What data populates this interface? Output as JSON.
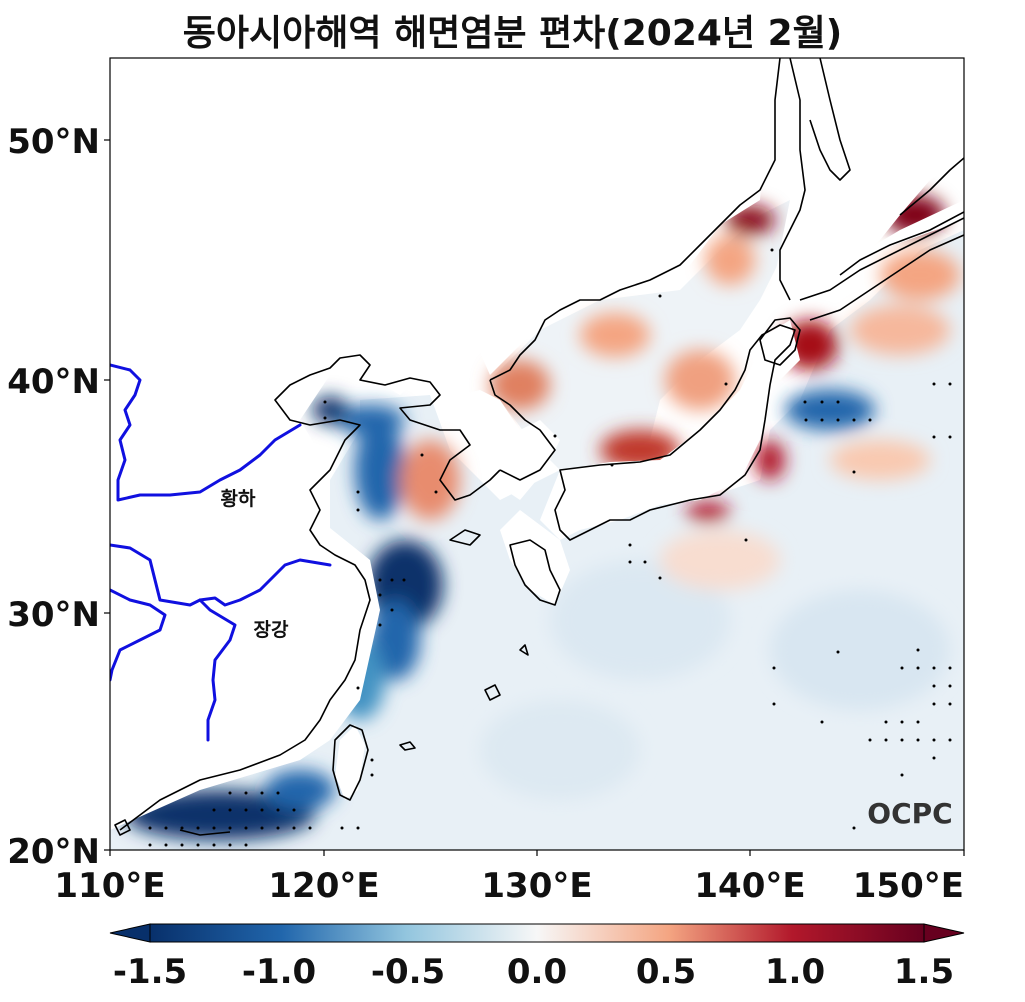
{
  "title": "동아시아해역 해면염분 편차(2024년 2월)",
  "axes": {
    "lat_ticks": [
      "50°N",
      "40°N",
      "30°N",
      "20°N"
    ],
    "lon_ticks": [
      "110°E",
      "120°E",
      "130°E",
      "140°E",
      "150°E"
    ],
    "lon_range": [
      110,
      150
    ],
    "lat_range": [
      20,
      53.5
    ]
  },
  "rivers": [
    {
      "label": "황하"
    },
    {
      "label": "장강"
    }
  ],
  "logo": "OCPC",
  "colorbar": {
    "ticks": [
      "-1.5",
      "-1.0",
      "-0.5",
      "0.0",
      "0.5",
      "1.0",
      "1.5"
    ],
    "range": [
      -1.5,
      1.5
    ],
    "colormap": "RdBu_r",
    "extend": "both"
  },
  "colors": {
    "river": "#1010e0",
    "coast": "#000000",
    "neg_strong": "#08306b",
    "neg_mid": "#2166ac",
    "neg_light": "#d1e5f0",
    "neutral": "#f7f7f7",
    "pos_light": "#fddbc7",
    "pos_mid": "#d6604d",
    "pos_strong": "#67001f"
  }
}
